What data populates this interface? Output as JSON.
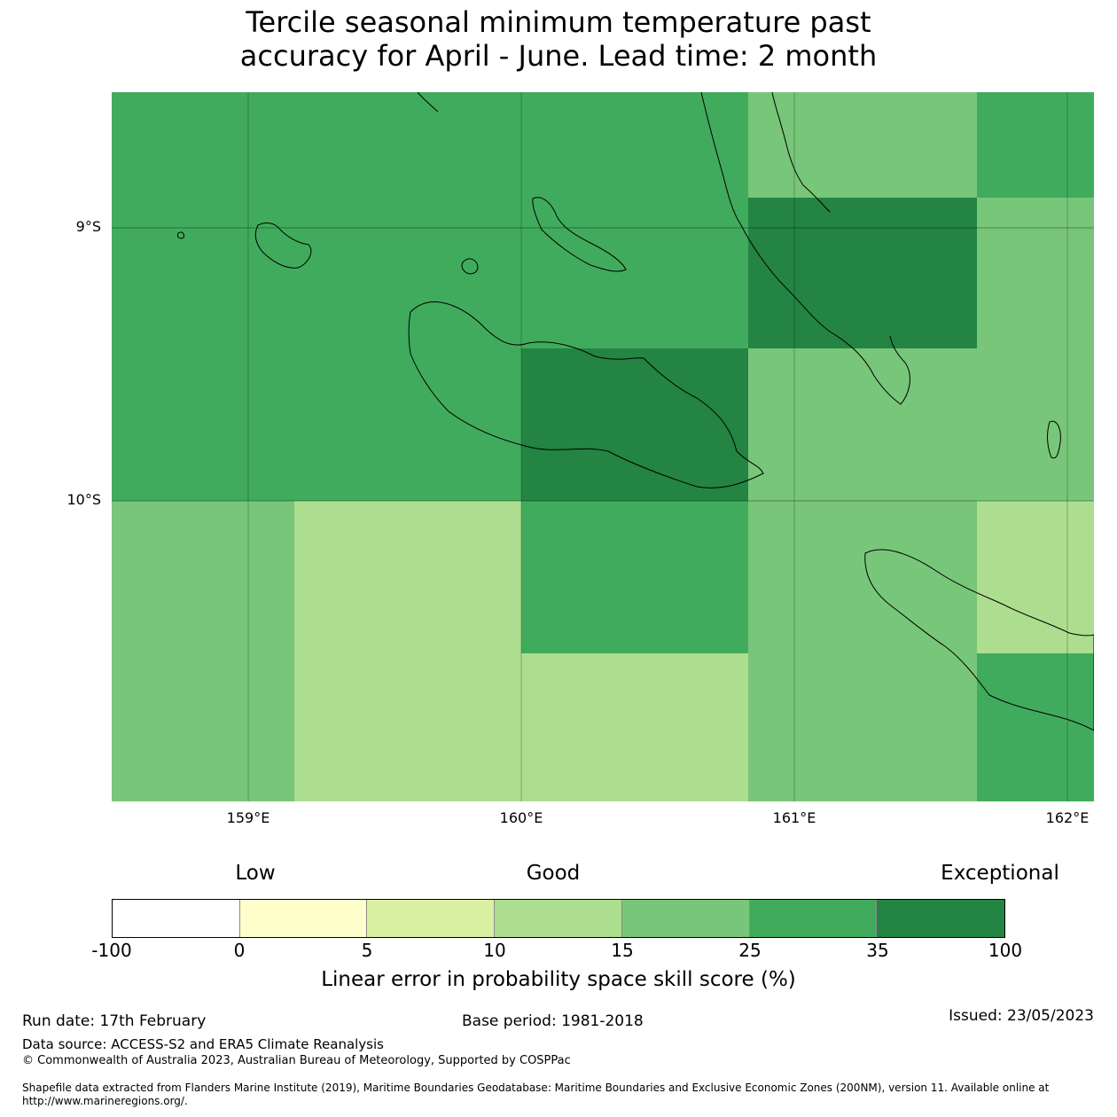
{
  "title_line1": "Tercile seasonal minimum temperature past",
  "title_line2": "accuracy for April - June. Lead time: 2 month",
  "map": {
    "lat_labels": [
      {
        "text": "9°S",
        "lat": -9.0
      },
      {
        "text": "10°S",
        "lat": -10.0
      }
    ],
    "lon_labels": [
      {
        "text": "159°E",
        "lon": 159.0
      },
      {
        "text": "160°E",
        "lon": 160.0
      },
      {
        "text": "161°E",
        "lon": 161.0
      },
      {
        "text": "162°E",
        "lon": 162.0
      }
    ],
    "grid_cells": [
      {
        "lon_range": [
          158.5,
          160.83
        ],
        "lat_range": [
          -8.5,
          -10.0
        ],
        "category": "25-35"
      },
      {
        "lon_range": [
          160.0,
          160.83
        ],
        "lat_range": [
          -9.44,
          -10.0
        ],
        "category": "35-100"
      },
      {
        "lon_range": [
          160.83,
          161.67
        ],
        "lat_range": [
          -8.5,
          -8.89
        ],
        "category": "15-25"
      },
      {
        "lon_range": [
          160.83,
          161.67
        ],
        "lat_range": [
          -8.89,
          -9.44
        ],
        "category": "35-100"
      },
      {
        "lon_range": [
          160.83,
          162.1
        ],
        "lat_range": [
          -9.44,
          -10.0
        ],
        "category": "15-25"
      },
      {
        "lon_range": [
          161.67,
          162.1
        ],
        "lat_range": [
          -8.5,
          -8.89
        ],
        "category": "25-35"
      },
      {
        "lon_range": [
          161.67,
          162.1
        ],
        "lat_range": [
          -8.89,
          -9.44
        ],
        "category": "15-25"
      },
      {
        "lon_range": [
          158.5,
          159.17
        ],
        "lat_range": [
          -10.0,
          -11.1
        ],
        "category": "15-25"
      },
      {
        "lon_range": [
          159.17,
          160.0
        ],
        "lat_range": [
          -10.0,
          -11.1
        ],
        "category": "10-15"
      },
      {
        "lon_range": [
          160.0,
          160.83
        ],
        "lat_range": [
          -10.0,
          -10.56
        ],
        "category": "25-35"
      },
      {
        "lon_range": [
          160.0,
          160.83
        ],
        "lat_range": [
          -10.56,
          -11.1
        ],
        "category": "10-15"
      },
      {
        "lon_range": [
          160.83,
          161.67
        ],
        "lat_range": [
          -10.0,
          -11.1
        ],
        "category": "15-25"
      },
      {
        "lon_range": [
          161.67,
          162.1
        ],
        "lat_range": [
          -10.0,
          -10.56
        ],
        "category": "10-15"
      },
      {
        "lon_range": [
          161.67,
          162.1
        ],
        "lat_range": [
          -10.56,
          -11.1
        ],
        "category": "25-35"
      }
    ]
  },
  "colorbar": {
    "category_labels": [
      "Low",
      "Good",
      "Exceptional"
    ],
    "segments": [
      {
        "range": "-100-0",
        "color": "#ffffff"
      },
      {
        "range": "0-5",
        "color": "#ffffcc"
      },
      {
        "range": "5-10",
        "color": "#d9f0a3"
      },
      {
        "range": "10-15",
        "color": "#addd8e"
      },
      {
        "range": "15-25",
        "color": "#78c679"
      },
      {
        "range": "25-35",
        "color": "#41ab5d"
      },
      {
        "range": "35-100",
        "color": "#238443"
      }
    ],
    "ticks": [
      "-100",
      "0",
      "5",
      "10",
      "15",
      "25",
      "35",
      "100"
    ],
    "label": "Linear error in probability space skill score (%)"
  },
  "footer": {
    "run_date": "Run date: 17th February",
    "base_period": "Base period: 1981-2018",
    "issued": "Issued: 23/05/2023",
    "data_source": "Data source: ACCESS-S2 and ERA5 Climate Reanalysis",
    "copyright": "© Commonwealth of Australia 2023, Australian Bureau of Meteorology, Supported by COSPPac",
    "shapefile": "Shapefile data extracted from Flanders Marine Institute (2019), Maritime Boundaries Geodatabase: Maritime Boundaries and Exclusive Economic Zones (200NM), version 11. Available online at http://www.marineregions.org/."
  }
}
